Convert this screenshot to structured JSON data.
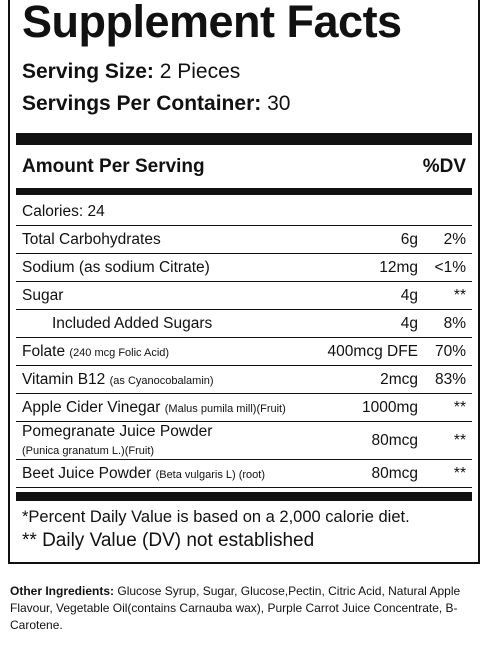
{
  "header": {
    "title": "Supplement Facts",
    "serving_size": {
      "label": "Serving Size:",
      "value": "2 Pieces"
    },
    "servings_per_container": {
      "label": "Servings Per Container:",
      "value": "30"
    }
  },
  "table": {
    "header": {
      "amount": "Amount Per Serving",
      "dv": "%DV"
    },
    "calories": "Calories: 24",
    "rows": [
      {
        "name": "Total Carbohydrates",
        "amount": "6g",
        "dv": "2%"
      },
      {
        "name": "Sodium (as sodium Citrate)",
        "amount": "12mg",
        "dv": "<1%"
      },
      {
        "name": "Sugar",
        "amount": "4g",
        "dv": "**"
      },
      {
        "name": "Included Added Sugars",
        "amount": "4g",
        "dv": "8%"
      },
      {
        "name": "Folate",
        "note": "(240 mcg Folic Acid)",
        "amount": "400mcg DFE",
        "dv": "70%"
      },
      {
        "name": "Vitamin B12",
        "note": "(as Cyanocobalamin)",
        "amount": "2mcg",
        "dv": "83%"
      },
      {
        "name": "Apple Cider Vinegar",
        "note": "(Malus pumila mill)(Fruit)",
        "amount": "1000mg",
        "dv": "**"
      },
      {
        "name": "Pomegranate Juice Powder",
        "note": "(Punica granatum L.)(Fruit)",
        "amount": "80mcg",
        "dv": "**"
      },
      {
        "name": "Beet Juice Powder",
        "note": "(Beta vulgaris L) (root)",
        "amount": "80mcg",
        "dv": "**"
      }
    ]
  },
  "footnotes": [
    "*Percent Daily Value is based on a 2,000 calorie diet.",
    "** Daily Value (DV) not established"
  ],
  "other_ingredients": {
    "label": "Other Ingredients:",
    "text": "Glucose Syrup, Sugar, Glucose,Pectin, Citric Acid,  Natural Apple Flavour, Vegetable Oil(contains Carnauba wax), Purple Carrot Juice Concentrate, B-Carotene."
  }
}
